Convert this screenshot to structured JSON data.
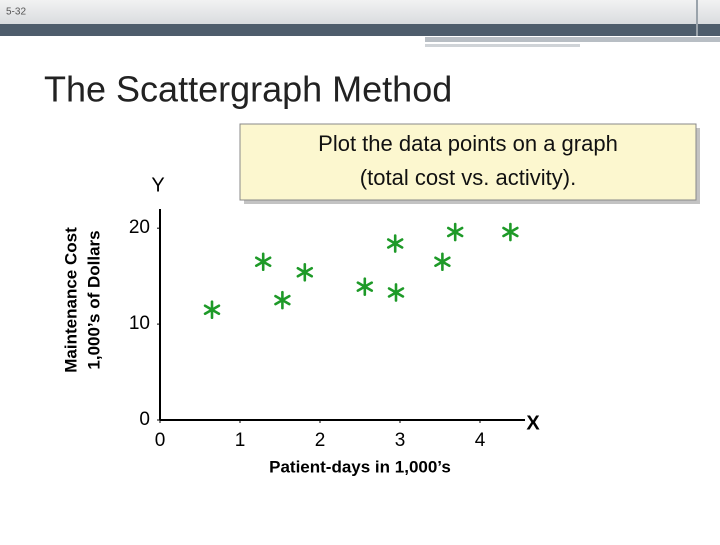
{
  "slide_number": "5-32",
  "title": "The Scattergraph Method",
  "callout": [
    "Plot the data points on a graph",
    "(total cost vs. activity)."
  ],
  "chart_data": {
    "type": "scatter",
    "y_axis_name": "Y",
    "x_axis_name": "X",
    "xlabel": "Patient-days in 1,000’s",
    "ylabel": [
      "Maintenance Cost",
      "1,000’s of Dollars"
    ],
    "x": [
      0.65,
      1.29,
      1.53,
      1.81,
      2.56,
      2.94,
      2.95,
      3.53,
      3.69,
      4.38
    ],
    "values": [
      11.5,
      16.5,
      12.5,
      15.4,
      13.9,
      18.4,
      13.3,
      16.5,
      19.6,
      19.6
    ],
    "color": "#1e9a28",
    "xlim": [
      0,
      4.5
    ],
    "ylim": [
      0,
      22
    ],
    "xticks": [
      0,
      1,
      2,
      3,
      4
    ],
    "yticks": [
      0,
      10,
      20
    ]
  }
}
